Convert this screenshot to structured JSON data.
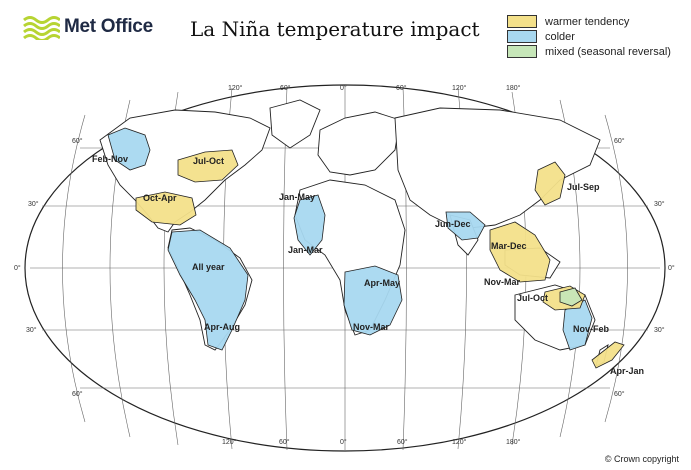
{
  "header": {
    "logo_text": "Met Office",
    "title": "La Niña temperature impact"
  },
  "legend": {
    "items": [
      {
        "label": "warmer tendency",
        "color": "#f3e08a"
      },
      {
        "label": "colder",
        "color": "#a8d8f0"
      },
      {
        "label": "mixed (seasonal reversal)",
        "color": "#c6e6b8"
      }
    ]
  },
  "graticule": {
    "top_lon": [
      "120°",
      "60°",
      "0°",
      "60°",
      "120°",
      "180°"
    ],
    "bottom_lon": [
      "120°",
      "60°",
      "0°",
      "60°",
      "120°",
      "180°"
    ],
    "lat_left": [
      "60°",
      "30°",
      "0°",
      "30°",
      "60°"
    ],
    "lat_right": [
      "60°",
      "30°",
      "0°",
      "30°",
      "60°"
    ]
  },
  "regions": {
    "feb_nov": "Feb-Nov",
    "jul_oct_na": "Jul-Oct",
    "oct_apr": "Oct-Apr",
    "all_year": "All year",
    "apr_aug": "Apr-Aug",
    "jan_may": "Jan-May",
    "jan_mar": "Jan-Mar",
    "apr_may": "Apr-May",
    "nov_mar_af": "Nov-Mar",
    "jun_dec": "Jun-Dec",
    "mar_dec": "Mar-Dec",
    "nov_mar_as": "Nov-Mar",
    "jul_sep": "Jul-Sep",
    "jul_oct_au": "Jul-Oct",
    "nov_feb": "Nov-Feb",
    "apr_jan": "Apr-Jan"
  },
  "footer": {
    "copyright": "© Crown copyright"
  }
}
